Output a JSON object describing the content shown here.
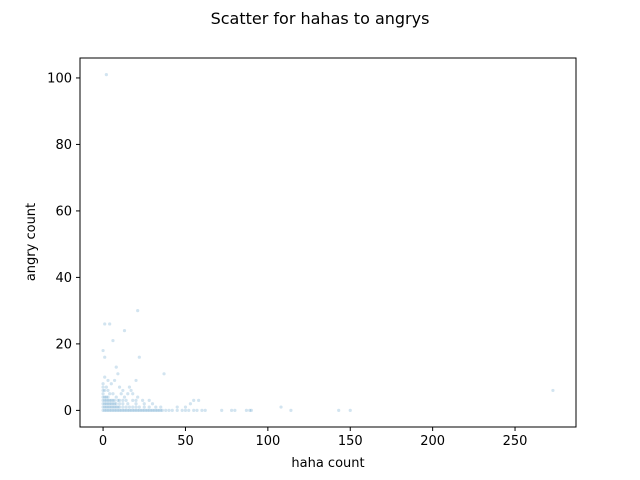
{
  "chart_data": {
    "type": "scatter",
    "title": "Scatter for hahas to angrys",
    "xlabel": "haha count",
    "ylabel": "angry count",
    "xlim": [
      -14,
      287
    ],
    "ylim": [
      -5,
      106
    ],
    "xticks": [
      0,
      50,
      100,
      150,
      200,
      250
    ],
    "yticks": [
      0,
      20,
      40,
      60,
      80,
      100
    ],
    "grid": false,
    "marker_color": "#1f77b4",
    "marker_alpha": 0.2,
    "series": [
      {
        "points": [
          [
            2,
            101
          ],
          [
            21,
            30
          ],
          [
            1,
            26
          ],
          [
            4,
            26
          ],
          [
            13,
            24
          ],
          [
            22,
            16
          ],
          [
            0,
            18
          ],
          [
            1,
            16
          ],
          [
            37,
            11
          ],
          [
            6,
            21
          ],
          [
            8,
            13
          ],
          [
            1,
            10
          ],
          [
            3,
            9
          ],
          [
            5,
            8
          ],
          [
            7,
            9
          ],
          [
            9,
            11
          ],
          [
            10,
            7
          ],
          [
            16,
            7
          ],
          [
            17,
            6
          ],
          [
            20,
            9
          ],
          [
            12,
            6
          ],
          [
            15,
            5
          ],
          [
            11,
            5
          ],
          [
            13,
            4
          ],
          [
            0,
            8
          ],
          [
            0,
            7
          ],
          [
            0,
            6
          ],
          [
            1,
            6
          ],
          [
            2,
            7
          ],
          [
            3,
            6
          ],
          [
            4,
            5
          ],
          [
            6,
            5
          ],
          [
            8,
            4
          ],
          [
            18,
            5
          ],
          [
            21,
            4
          ],
          [
            24,
            3
          ],
          [
            28,
            3
          ],
          [
            0,
            5
          ],
          [
            0,
            4
          ],
          [
            1,
            4
          ],
          [
            2,
            4
          ],
          [
            3,
            4
          ],
          [
            0,
            3
          ],
          [
            1,
            3
          ],
          [
            2,
            3
          ],
          [
            3,
            3
          ],
          [
            4,
            3
          ],
          [
            5,
            3
          ],
          [
            6,
            3
          ],
          [
            7,
            3
          ],
          [
            9,
            3
          ],
          [
            10,
            3
          ],
          [
            12,
            3
          ],
          [
            14,
            3
          ],
          [
            18,
            3
          ],
          [
            20,
            3
          ],
          [
            0,
            2
          ],
          [
            1,
            2
          ],
          [
            2,
            2
          ],
          [
            3,
            2
          ],
          [
            4,
            2
          ],
          [
            5,
            2
          ],
          [
            6,
            2
          ],
          [
            7,
            2
          ],
          [
            8,
            2
          ],
          [
            10,
            2
          ],
          [
            12,
            2
          ],
          [
            15,
            2
          ],
          [
            20,
            2
          ],
          [
            25,
            2
          ],
          [
            30,
            2
          ],
          [
            0,
            1
          ],
          [
            1,
            1
          ],
          [
            2,
            1
          ],
          [
            3,
            1
          ],
          [
            4,
            1
          ],
          [
            5,
            1
          ],
          [
            6,
            1
          ],
          [
            7,
            1
          ],
          [
            8,
            1
          ],
          [
            9,
            1
          ],
          [
            10,
            1
          ],
          [
            12,
            1
          ],
          [
            14,
            1
          ],
          [
            16,
            1
          ],
          [
            18,
            1
          ],
          [
            20,
            1
          ],
          [
            22,
            1
          ],
          [
            25,
            1
          ],
          [
            28,
            1
          ],
          [
            32,
            1
          ],
          [
            35,
            1
          ],
          [
            45,
            1
          ],
          [
            50,
            1
          ],
          [
            108,
            1
          ],
          [
            0,
            0
          ],
          [
            1,
            0
          ],
          [
            2,
            0
          ],
          [
            3,
            0
          ],
          [
            4,
            0
          ],
          [
            5,
            0
          ],
          [
            6,
            0
          ],
          [
            7,
            0
          ],
          [
            8,
            0
          ],
          [
            9,
            0
          ],
          [
            10,
            0
          ],
          [
            11,
            0
          ],
          [
            12,
            0
          ],
          [
            13,
            0
          ],
          [
            14,
            0
          ],
          [
            15,
            0
          ],
          [
            16,
            0
          ],
          [
            17,
            0
          ],
          [
            18,
            0
          ],
          [
            19,
            0
          ],
          [
            20,
            0
          ],
          [
            21,
            0
          ],
          [
            22,
            0
          ],
          [
            23,
            0
          ],
          [
            24,
            0
          ],
          [
            25,
            0
          ],
          [
            26,
            0
          ],
          [
            27,
            0
          ],
          [
            28,
            0
          ],
          [
            29,
            0
          ],
          [
            30,
            0
          ],
          [
            31,
            0
          ],
          [
            32,
            0
          ],
          [
            33,
            0
          ],
          [
            34,
            0
          ],
          [
            35,
            0
          ],
          [
            36,
            0
          ],
          [
            38,
            0
          ],
          [
            40,
            0
          ],
          [
            42,
            0
          ],
          [
            45,
            0
          ],
          [
            48,
            0
          ],
          [
            50,
            0
          ],
          [
            52,
            0
          ],
          [
            55,
            0
          ],
          [
            57,
            0
          ],
          [
            60,
            0
          ],
          [
            62,
            0
          ],
          [
            72,
            0
          ],
          [
            78,
            0
          ],
          [
            80,
            0
          ],
          [
            87,
            0
          ],
          [
            89,
            0
          ],
          [
            90,
            0
          ],
          [
            114,
            0
          ],
          [
            143,
            0
          ],
          [
            150,
            0
          ],
          [
            55,
            3
          ],
          [
            58,
            3
          ],
          [
            53,
            2
          ],
          [
            273,
            6
          ]
        ]
      }
    ]
  }
}
